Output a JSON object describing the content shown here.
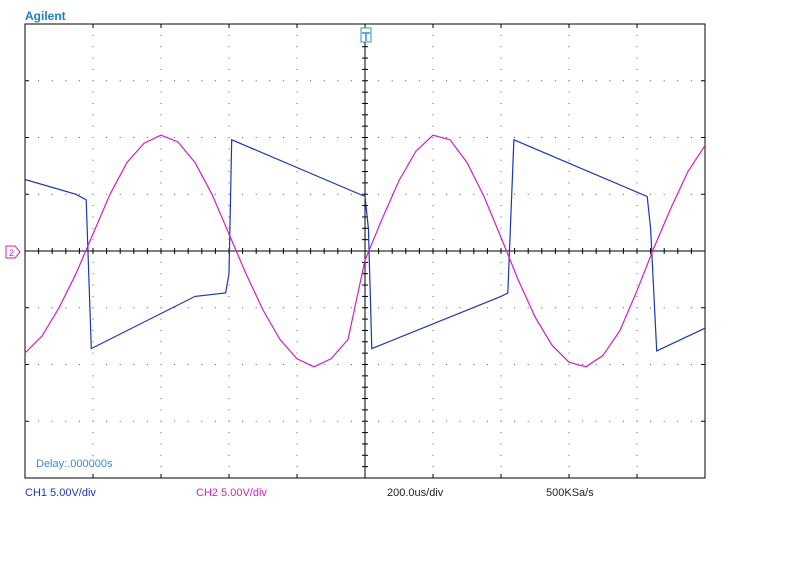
{
  "brand": "Agilent",
  "delay_text": "Delay:.000000s",
  "status": {
    "ch1": "CH1 5.00V/div",
    "ch2": "CH2 5.00V/div",
    "timebase": "200.0us/div",
    "sample_rate": "500KSa/s"
  },
  "colors": {
    "ch1": "#1c36b4",
    "ch2": "#d11fc6",
    "marker": "#3a8ad0",
    "grid": "#000000"
  },
  "icons": {
    "trigger_marker": "trigger-t-icon",
    "ground_marker": "ground-arrow-icon"
  },
  "chart_data": {
    "type": "line",
    "x_unit": "us",
    "y_unit": "V",
    "x_range": [
      0,
      2000
    ],
    "y_range": [
      -20,
      20
    ],
    "divisions": {
      "x": 10,
      "y": 8
    },
    "grid": true,
    "series": [
      {
        "name": "CH1",
        "x": [
          0,
          150,
          180,
          195,
          500,
          590,
          600,
          608,
          1000,
          1010,
          1020,
          1400,
          1420,
          1438,
          1830,
          1840,
          1858,
          2000
        ],
        "y": [
          6.3,
          5.0,
          4.5,
          -8.6,
          -4.0,
          -3.7,
          -2.0,
          9.8,
          4.8,
          2.0,
          -8.6,
          -4.0,
          -3.7,
          9.8,
          4.8,
          2.0,
          -8.8,
          -6.8
        ]
      },
      {
        "name": "CH2",
        "x": [
          0,
          50,
          100,
          150,
          200,
          250,
          300,
          350,
          400,
          450,
          500,
          550,
          600,
          650,
          700,
          750,
          800,
          850,
          900,
          950,
          1000,
          1050,
          1100,
          1150,
          1200,
          1250,
          1300,
          1350,
          1400,
          1450,
          1500,
          1550,
          1600,
          1650,
          1700,
          1750,
          1800,
          1850,
          1900,
          1950,
          2000
        ],
        "y": [
          -9.0,
          -7.5,
          -5.0,
          -2.0,
          1.5,
          5.0,
          7.8,
          9.5,
          10.2,
          9.6,
          7.8,
          5.0,
          1.5,
          -2.0,
          -5.2,
          -7.8,
          -9.5,
          -10.2,
          -9.5,
          -7.8,
          -0.8,
          2.8,
          6.2,
          8.8,
          10.2,
          9.8,
          7.8,
          4.8,
          1.2,
          -2.5,
          -5.8,
          -8.3,
          -9.8,
          -10.2,
          -9.2,
          -7.0,
          -3.5,
          0.3,
          3.8,
          7.0,
          9.3
        ]
      }
    ]
  }
}
